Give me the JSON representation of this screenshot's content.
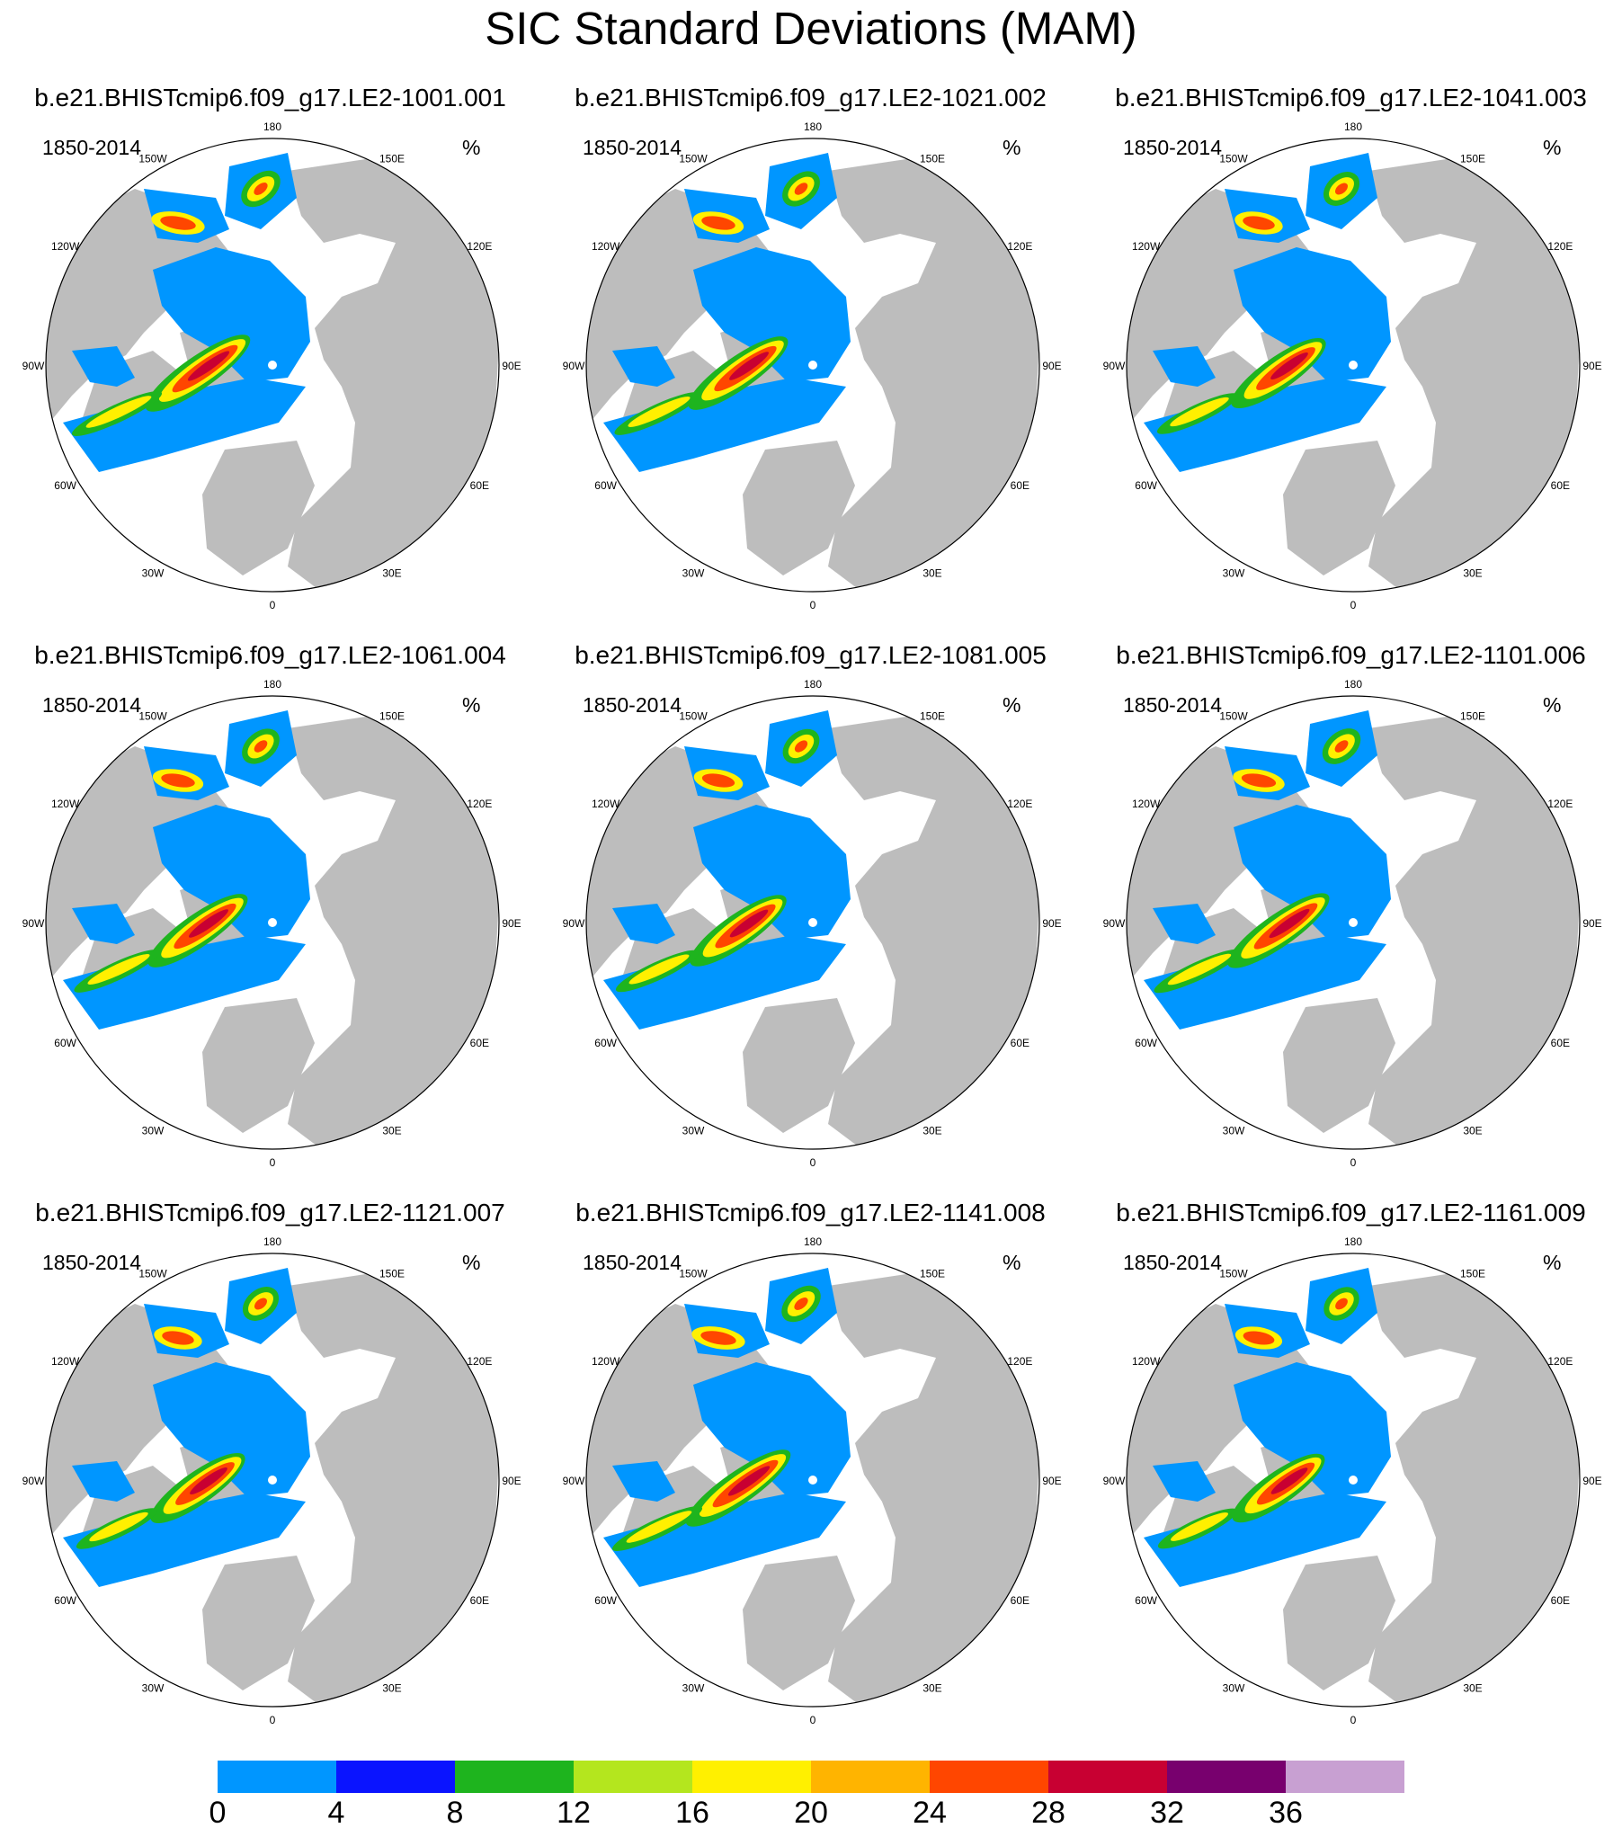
{
  "title": "SIC Standard Deviations (MAM)",
  "panel_period": "1850-2014",
  "panel_units": "%",
  "lon_labels": [
    "180",
    "150E",
    "120E",
    "90E",
    "60E",
    "30E",
    "0",
    "30W",
    "60W",
    "90W",
    "120W",
    "150W"
  ],
  "panels": [
    {
      "id": "b.e21.BHISTcmip6.f09_g17.LE2-1001.001",
      "intensity": 1.0
    },
    {
      "id": "b.e21.BHISTcmip6.f09_g17.LE2-1021.002",
      "intensity": 0.95
    },
    {
      "id": "b.e21.BHISTcmip6.f09_g17.LE2-1041.003",
      "intensity": 0.9
    },
    {
      "id": "b.e21.BHISTcmip6.f09_g17.LE2-1061.004",
      "intensity": 0.95
    },
    {
      "id": "b.e21.BHISTcmip6.f09_g17.LE2-1081.005",
      "intensity": 0.92
    },
    {
      "id": "b.e21.BHISTcmip6.f09_g17.LE2-1101.006",
      "intensity": 0.97
    },
    {
      "id": "b.e21.BHISTcmip6.f09_g17.LE2-1121.007",
      "intensity": 0.9
    },
    {
      "id": "b.e21.BHISTcmip6.f09_g17.LE2-1141.008",
      "intensity": 1.0
    },
    {
      "id": "b.e21.BHISTcmip6.f09_g17.LE2-1161.009",
      "intensity": 0.88
    }
  ],
  "colorbar": {
    "labels": [
      "0",
      "4",
      "8",
      "12",
      "16",
      "20",
      "24",
      "28",
      "32",
      "36"
    ],
    "colors": [
      "#0096ff",
      "#0a14ff",
      "#1eb41e",
      "#b4e61e",
      "#fff000",
      "#ffb400",
      "#ff4600",
      "#c80032",
      "#78006e",
      "#c8a0d2"
    ]
  },
  "land_color": "#bdbdbd",
  "ice_base_color": "#0096ff"
}
